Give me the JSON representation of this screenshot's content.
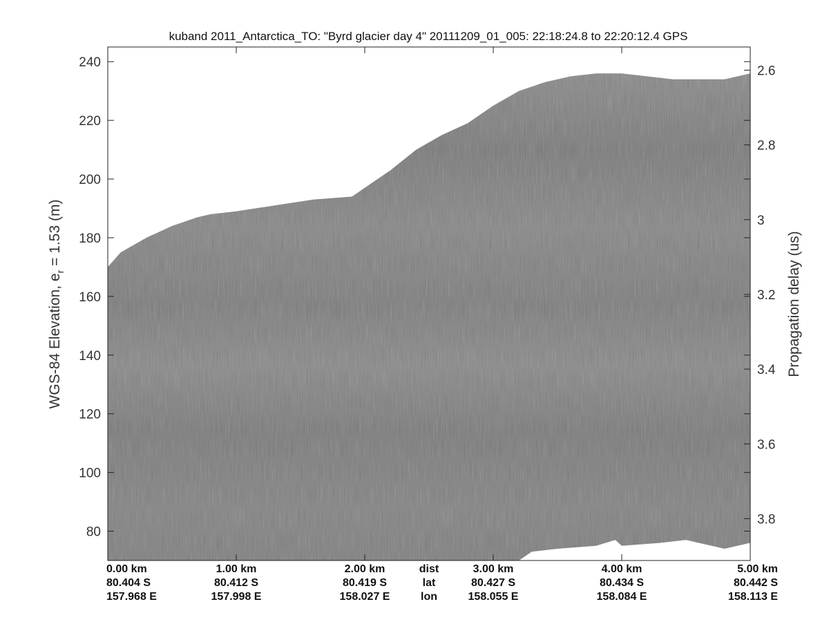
{
  "chart_data": {
    "type": "heatmap",
    "title": "kuband 2011_Antarctica_TO: \"Byrd glacier day 4\"  20111209_01_005: 22:18:24.8 to 22:20:12.4 GPS",
    "ylabel_main": "WGS-84 Elevation, e",
    "ylabel_sub": "r",
    "ylabel_rest": " = 1.53 (m)",
    "y2label": "Propagation delay (us)",
    "ylim": [
      70,
      245
    ],
    "y_ticks": [
      80,
      100,
      120,
      140,
      160,
      180,
      200,
      220,
      240
    ],
    "y2lim": [
      2.538,
      3.912
    ],
    "y2_ticks": [
      "2.6",
      "2.8",
      "3",
      "3.2",
      "3.4",
      "3.6",
      "3.8"
    ],
    "xlim": [
      0,
      5
    ],
    "x_ticks": [
      {
        "x": 0,
        "dist": "0.00 km",
        "lat": "80.404 S",
        "lon": "157.968 E"
      },
      {
        "x": 1,
        "dist": "1.00 km",
        "lat": "80.412 S",
        "lon": "157.998 E"
      },
      {
        "x": 2,
        "dist": "2.00 km",
        "lat": "80.419 S",
        "lon": "158.027 E"
      },
      {
        "x": 3,
        "dist": "3.00 km",
        "lat": "80.427 S",
        "lon": "158.055 E"
      },
      {
        "x": 4,
        "dist": "4.00 km",
        "lat": "80.434 S",
        "lon": "158.084 E"
      },
      {
        "x": 5,
        "dist": "5.00 km",
        "lat": "80.442 S",
        "lon": "158.113 E"
      }
    ],
    "row_labels": {
      "x": 2.5,
      "dist": "dist",
      "lat": "lat",
      "lon": "lon"
    },
    "surface": {
      "x": [
        0,
        0.1,
        0.3,
        0.5,
        0.7,
        0.8,
        1.0,
        1.3,
        1.6,
        1.9,
        2.0,
        2.2,
        2.4,
        2.6,
        2.8,
        3.0,
        3.2,
        3.4,
        3.6,
        3.8,
        4.0,
        4.2,
        4.4,
        4.6,
        4.8,
        5.0
      ],
      "y": [
        170,
        175,
        180,
        184,
        187,
        188,
        189,
        191,
        193,
        194,
        197,
        203,
        210,
        215,
        219,
        225,
        230,
        233,
        235,
        236,
        236,
        235,
        234,
        234,
        234,
        236
      ]
    },
    "bottom_limit": {
      "x": [
        3.2,
        3.3,
        3.5,
        3.8,
        3.95,
        4.0,
        4.3,
        4.5,
        4.7,
        4.8,
        4.9,
        5.0
      ],
      "y": [
        70,
        73,
        74,
        75,
        77,
        75,
        76,
        77,
        75,
        74,
        75,
        76
      ]
    },
    "colormap": "gray",
    "grid": false
  }
}
